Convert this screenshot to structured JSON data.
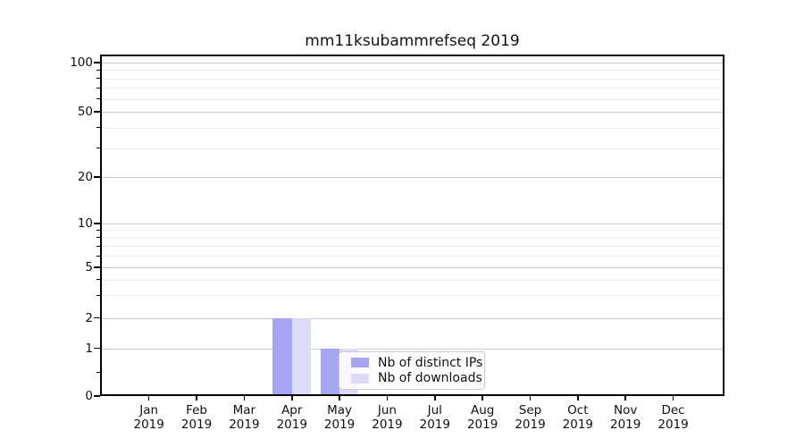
{
  "chart_data": {
    "type": "bar",
    "title": "mm11ksubammrefseq 2019",
    "x": {
      "categories": [
        "Jan",
        "Feb",
        "Mar",
        "Apr",
        "May",
        "Jun",
        "Jul",
        "Aug",
        "Sep",
        "Oct",
        "Nov",
        "Dec"
      ],
      "year_label": "2019"
    },
    "y": {
      "scale": "symlog",
      "ticks": [
        0,
        1,
        2,
        5,
        10,
        20,
        50,
        100
      ],
      "minor_ticks": [
        3,
        4,
        6,
        7,
        8,
        9,
        30,
        40,
        60,
        70,
        80,
        90
      ],
      "ylim": [
        0,
        130
      ]
    },
    "series": [
      {
        "name": "Nb of distinct IPs",
        "color": "#a6a6f2",
        "values": [
          0,
          0,
          0,
          2,
          1,
          0,
          0,
          0,
          0,
          0,
          0,
          0
        ]
      },
      {
        "name": "Nb of downloads",
        "color": "#dcdcf9",
        "values": [
          0,
          0,
          0,
          2,
          1,
          0,
          0,
          0,
          0,
          0,
          0,
          0
        ]
      }
    ],
    "legend": {
      "position": "inside-lower-center"
    },
    "grid": {
      "horizontal": true,
      "major_color": "#c9c9c9",
      "minor_color": "#ebebeb"
    }
  }
}
